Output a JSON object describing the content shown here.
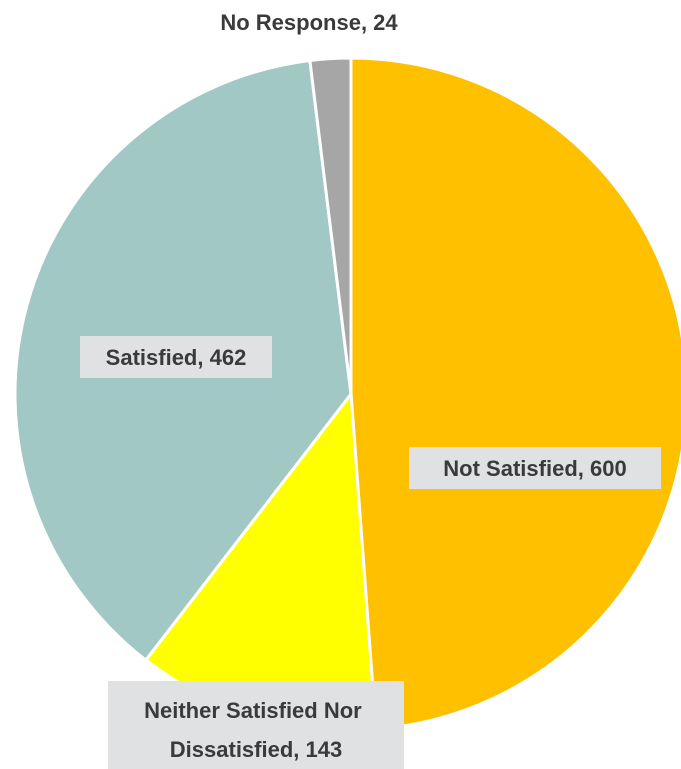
{
  "chart_data": {
    "type": "pie",
    "title": "",
    "slices": [
      {
        "label": "Not Satisfied, 600",
        "category": "Not Satisfied",
        "value": 600,
        "color": "#FFC000"
      },
      {
        "label": "Neither Satisfied Nor Dissatisfied, 143",
        "category": "Neither Satisfied Nor Dissatisfied",
        "value": 143,
        "color": "#FFFF00"
      },
      {
        "label": "Satisfied, 462",
        "category": "Satisfied",
        "value": 462,
        "color": "#A2C8C6"
      },
      {
        "label": "No Response, 24",
        "category": "No Response",
        "value": 24,
        "color": "#A6A6A6"
      }
    ],
    "label_lines": {
      "neither": [
        "Neither Satisfied Nor",
        "Dissatisfied, 143"
      ]
    },
    "start": "12 o'clock, clockwise",
    "legend": "none"
  }
}
